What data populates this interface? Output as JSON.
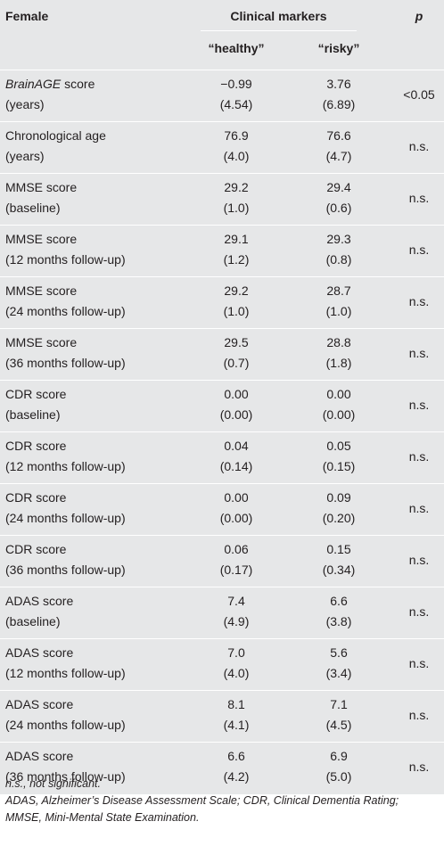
{
  "table": {
    "header": {
      "col_label": "Female",
      "group_label": "Clinical markers",
      "p_label": "p",
      "healthy_label": "“healthy”",
      "risky_label": "“risky”"
    },
    "rows": [
      {
        "measure": "BrainAGE",
        "measure_suffix": " score",
        "sub": "(years)",
        "healthy": "−0.99",
        "healthy_sd": "(4.54)",
        "risky": "3.76",
        "risky_sd": "(6.89)",
        "p": "<0.05"
      },
      {
        "measure": "Chronological age",
        "measure_suffix": "",
        "sub": "(years)",
        "healthy": "76.9",
        "healthy_sd": "(4.0)",
        "risky": "76.6",
        "risky_sd": "(4.7)",
        "p": "n.s."
      },
      {
        "measure": "MMSE score",
        "measure_suffix": "",
        "sub": "(baseline)",
        "healthy": "29.2",
        "healthy_sd": "(1.0)",
        "risky": "29.4",
        "risky_sd": "(0.6)",
        "p": "n.s."
      },
      {
        "measure": "MMSE score",
        "measure_suffix": "",
        "sub": "(12 months follow-up)",
        "healthy": "29.1",
        "healthy_sd": "(1.2)",
        "risky": "29.3",
        "risky_sd": "(0.8)",
        "p": "n.s."
      },
      {
        "measure": "MMSE score",
        "measure_suffix": "",
        "sub": "(24 months follow-up)",
        "healthy": "29.2",
        "healthy_sd": "(1.0)",
        "risky": "28.7",
        "risky_sd": "(1.0)",
        "p": "n.s."
      },
      {
        "measure": "MMSE score",
        "measure_suffix": "",
        "sub": "(36 months follow-up)",
        "healthy": "29.5",
        "healthy_sd": "(0.7)",
        "risky": "28.8",
        "risky_sd": "(1.8)",
        "p": "n.s."
      },
      {
        "measure": "CDR score",
        "measure_suffix": "",
        "sub": "(baseline)",
        "healthy": "0.00",
        "healthy_sd": "(0.00)",
        "risky": "0.00",
        "risky_sd": "(0.00)",
        "p": "n.s."
      },
      {
        "measure": "CDR score",
        "measure_suffix": "",
        "sub": "(12 months follow-up)",
        "healthy": "0.04",
        "healthy_sd": "(0.14)",
        "risky": "0.05",
        "risky_sd": "(0.15)",
        "p": "n.s."
      },
      {
        "measure": "CDR score",
        "measure_suffix": "",
        "sub": "(24 months follow-up)",
        "healthy": "0.00",
        "healthy_sd": "(0.00)",
        "risky": "0.09",
        "risky_sd": "(0.20)",
        "p": "n.s."
      },
      {
        "measure": "CDR score",
        "measure_suffix": "",
        "sub": "(36 months follow-up)",
        "healthy": "0.06",
        "healthy_sd": "(0.17)",
        "risky": "0.15",
        "risky_sd": "(0.34)",
        "p": "n.s."
      },
      {
        "measure": "ADAS score",
        "measure_suffix": "",
        "sub": "(baseline)",
        "healthy": "7.4",
        "healthy_sd": "(4.9)",
        "risky": "6.6",
        "risky_sd": "(3.8)",
        "p": "n.s."
      },
      {
        "measure": "ADAS score",
        "measure_suffix": "",
        "sub": "(12 months follow-up)",
        "healthy": "7.0",
        "healthy_sd": "(4.0)",
        "risky": "5.6",
        "risky_sd": "(3.4)",
        "p": "n.s."
      },
      {
        "measure": "ADAS score",
        "measure_suffix": "",
        "sub": "(24 months follow-up)",
        "healthy": "8.1",
        "healthy_sd": "(4.1)",
        "risky": "7.1",
        "risky_sd": "(4.5)",
        "p": "n.s."
      },
      {
        "measure": "ADAS score",
        "measure_suffix": "",
        "sub": "(36 months follow-up)",
        "healthy": "6.6",
        "healthy_sd": "(4.2)",
        "risky": "6.9",
        "risky_sd": "(5.0)",
        "p": "n.s."
      }
    ]
  },
  "notes": {
    "line1": "n.s., not significant.",
    "line2": "ADAS, Alzheimer’s Disease Assessment Scale; CDR, Clinical Dementia Rating;",
    "line3": "MMSE, Mini-Mental State Examination."
  }
}
